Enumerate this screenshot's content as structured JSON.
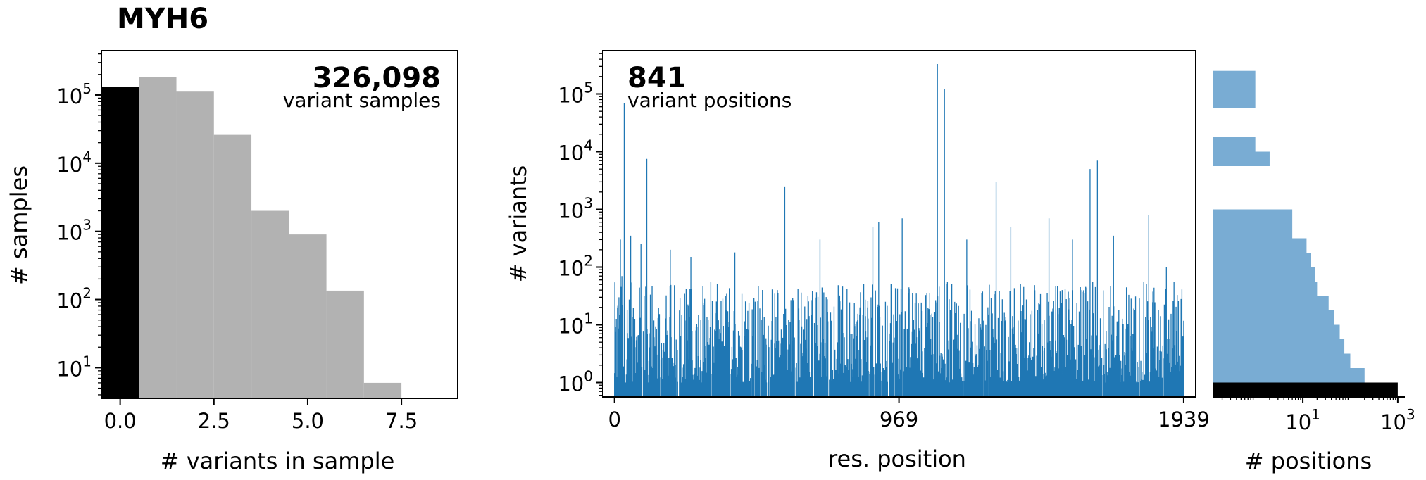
{
  "title": "MYH6",
  "colors": {
    "primary": "#1f77b4",
    "light": "#79acd3",
    "gray": "#b2b2b2",
    "black": "#000000",
    "annotation_gray": "#808080"
  },
  "chart_data": [
    {
      "type": "bar",
      "name": "samples-histogram",
      "xlabel": "# variants in sample",
      "ylabel": "# samples",
      "xlim": [
        -0.5,
        9.0
      ],
      "ylim_log10": [
        0.55,
        5.65
      ],
      "yscale": "log",
      "xticks": [
        0.0,
        2.5,
        5.0,
        7.5
      ],
      "xtick_labels": [
        "0.0",
        "2.5",
        "5.0",
        "7.5"
      ],
      "yticks_log10": [
        1,
        2,
        3,
        4,
        5
      ],
      "ytick_base": "10",
      "ytick_exponents": [
        "1",
        "2",
        "3",
        "4",
        "5"
      ],
      "bins": [
        0,
        1,
        2,
        3,
        4,
        5,
        6,
        7
      ],
      "values": [
        130000,
        185000,
        112000,
        26000,
        2000,
        900,
        135,
        6
      ],
      "highlight_bin": 0,
      "annotation_value": "326,098",
      "annotation_label": "variant samples"
    },
    {
      "type": "bar",
      "name": "position-variants",
      "xlabel": "res. position",
      "ylabel": "# variants",
      "xlim": [
        -40,
        1980
      ],
      "ylim_log10": [
        -0.25,
        5.75
      ],
      "yscale": "log",
      "xticks": [
        0,
        969,
        1939
      ],
      "xtick_labels": [
        "0",
        "969",
        "1939"
      ],
      "yticks_log10": [
        0,
        1,
        2,
        3,
        4,
        5
      ],
      "ytick_base": "10",
      "ytick_exponents": [
        "0",
        "1",
        "2",
        "3",
        "4",
        "5"
      ],
      "n_positions": 1939,
      "highlights": [
        {
          "pos": 10,
          "value": 20
        },
        {
          "pos": 20,
          "value": 300
        },
        {
          "pos": 25,
          "value": 70
        },
        {
          "pos": 33,
          "value": 70000
        },
        {
          "pos": 55,
          "value": 350
        },
        {
          "pos": 90,
          "value": 250
        },
        {
          "pos": 110,
          "value": 7500
        },
        {
          "pos": 190,
          "value": 200
        },
        {
          "pos": 260,
          "value": 150
        },
        {
          "pos": 410,
          "value": 180
        },
        {
          "pos": 580,
          "value": 2500
        },
        {
          "pos": 700,
          "value": 300
        },
        {
          "pos": 880,
          "value": 500
        },
        {
          "pos": 900,
          "value": 600
        },
        {
          "pos": 980,
          "value": 700
        },
        {
          "pos": 1100,
          "value": 330000
        },
        {
          "pos": 1124,
          "value": 120000
        },
        {
          "pos": 1200,
          "value": 300
        },
        {
          "pos": 1300,
          "value": 3000
        },
        {
          "pos": 1350,
          "value": 500
        },
        {
          "pos": 1480,
          "value": 700
        },
        {
          "pos": 1560,
          "value": 300
        },
        {
          "pos": 1620,
          "value": 5000
        },
        {
          "pos": 1645,
          "value": 7000
        },
        {
          "pos": 1700,
          "value": 350
        },
        {
          "pos": 1820,
          "value": 800
        },
        {
          "pos": 1880,
          "value": 100
        }
      ],
      "annotation_value": "841",
      "annotation_label": "variant positions"
    },
    {
      "type": "bar",
      "name": "positions-histogram",
      "orientation": "horizontal",
      "xlabel": "# positions",
      "xscale": "log",
      "xlim_log10": [
        -0.9,
        3.15
      ],
      "xticks_log10": [
        1,
        3
      ],
      "xtick_base": "10",
      "xtick_exponents": [
        "1",
        "3"
      ],
      "bins_log10": [
        [
          -0.25,
          0.0
        ],
        [
          0.0,
          0.25
        ],
        [
          0.25,
          0.5
        ],
        [
          0.5,
          0.75
        ],
        [
          0.75,
          1.0
        ],
        [
          1.0,
          1.25
        ],
        [
          1.25,
          1.5
        ],
        [
          1.5,
          1.75
        ],
        [
          1.75,
          2.0
        ],
        [
          2.0,
          2.25
        ],
        [
          2.25,
          2.5
        ],
        [
          2.5,
          2.75
        ],
        [
          2.75,
          3.0
        ],
        [
          3.75,
          4.0
        ],
        [
          4.0,
          4.25
        ],
        [
          4.75,
          5.0
        ],
        [
          5.0,
          5.4
        ]
      ],
      "values": [
        1000,
        200,
        100,
        75,
        60,
        45,
        35,
        20,
        18,
        15,
        12,
        6,
        6,
        2,
        1,
        1,
        1
      ],
      "highlight_bin": 0
    }
  ]
}
